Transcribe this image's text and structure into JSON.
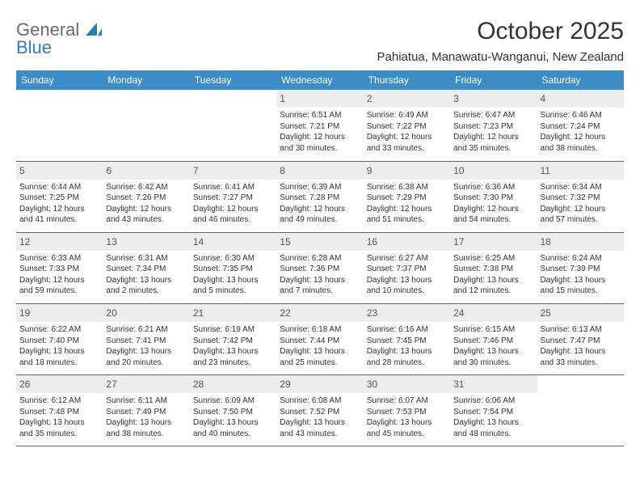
{
  "brand": {
    "word1": "General",
    "word2": "Blue"
  },
  "title": "October 2025",
  "location": "Pahiatua, Manawatu-Wanganui, New Zealand",
  "colors": {
    "header_bg": "#3c8dc5",
    "header_fg": "#ffffff",
    "daynum_bg": "#eceded",
    "rule": "#2a6fa8",
    "text": "#333333",
    "logo_gray": "#6b6b6b",
    "logo_blue": "#2a7fba"
  },
  "weekdays": [
    "Sunday",
    "Monday",
    "Tuesday",
    "Wednesday",
    "Thursday",
    "Friday",
    "Saturday"
  ],
  "weeks": [
    [
      {
        "n": "",
        "sr": "",
        "ss": "",
        "dl": ""
      },
      {
        "n": "",
        "sr": "",
        "ss": "",
        "dl": ""
      },
      {
        "n": "",
        "sr": "",
        "ss": "",
        "dl": ""
      },
      {
        "n": "1",
        "sr": "Sunrise: 6:51 AM",
        "ss": "Sunset: 7:21 PM",
        "dl": "Daylight: 12 hours and 30 minutes."
      },
      {
        "n": "2",
        "sr": "Sunrise: 6:49 AM",
        "ss": "Sunset: 7:22 PM",
        "dl": "Daylight: 12 hours and 33 minutes."
      },
      {
        "n": "3",
        "sr": "Sunrise: 6:47 AM",
        "ss": "Sunset: 7:23 PM",
        "dl": "Daylight: 12 hours and 35 minutes."
      },
      {
        "n": "4",
        "sr": "Sunrise: 6:46 AM",
        "ss": "Sunset: 7:24 PM",
        "dl": "Daylight: 12 hours and 38 minutes."
      }
    ],
    [
      {
        "n": "5",
        "sr": "Sunrise: 6:44 AM",
        "ss": "Sunset: 7:25 PM",
        "dl": "Daylight: 12 hours and 41 minutes."
      },
      {
        "n": "6",
        "sr": "Sunrise: 6:42 AM",
        "ss": "Sunset: 7:26 PM",
        "dl": "Daylight: 12 hours and 43 minutes."
      },
      {
        "n": "7",
        "sr": "Sunrise: 6:41 AM",
        "ss": "Sunset: 7:27 PM",
        "dl": "Daylight: 12 hours and 46 minutes."
      },
      {
        "n": "8",
        "sr": "Sunrise: 6:39 AM",
        "ss": "Sunset: 7:28 PM",
        "dl": "Daylight: 12 hours and 49 minutes."
      },
      {
        "n": "9",
        "sr": "Sunrise: 6:38 AM",
        "ss": "Sunset: 7:29 PM",
        "dl": "Daylight: 12 hours and 51 minutes."
      },
      {
        "n": "10",
        "sr": "Sunrise: 6:36 AM",
        "ss": "Sunset: 7:30 PM",
        "dl": "Daylight: 12 hours and 54 minutes."
      },
      {
        "n": "11",
        "sr": "Sunrise: 6:34 AM",
        "ss": "Sunset: 7:32 PM",
        "dl": "Daylight: 12 hours and 57 minutes."
      }
    ],
    [
      {
        "n": "12",
        "sr": "Sunrise: 6:33 AM",
        "ss": "Sunset: 7:33 PM",
        "dl": "Daylight: 12 hours and 59 minutes."
      },
      {
        "n": "13",
        "sr": "Sunrise: 6:31 AM",
        "ss": "Sunset: 7:34 PM",
        "dl": "Daylight: 13 hours and 2 minutes."
      },
      {
        "n": "14",
        "sr": "Sunrise: 6:30 AM",
        "ss": "Sunset: 7:35 PM",
        "dl": "Daylight: 13 hours and 5 minutes."
      },
      {
        "n": "15",
        "sr": "Sunrise: 6:28 AM",
        "ss": "Sunset: 7:36 PM",
        "dl": "Daylight: 13 hours and 7 minutes."
      },
      {
        "n": "16",
        "sr": "Sunrise: 6:27 AM",
        "ss": "Sunset: 7:37 PM",
        "dl": "Daylight: 13 hours and 10 minutes."
      },
      {
        "n": "17",
        "sr": "Sunrise: 6:25 AM",
        "ss": "Sunset: 7:38 PM",
        "dl": "Daylight: 13 hours and 12 minutes."
      },
      {
        "n": "18",
        "sr": "Sunrise: 6:24 AM",
        "ss": "Sunset: 7:39 PM",
        "dl": "Daylight: 13 hours and 15 minutes."
      }
    ],
    [
      {
        "n": "19",
        "sr": "Sunrise: 6:22 AM",
        "ss": "Sunset: 7:40 PM",
        "dl": "Daylight: 13 hours and 18 minutes."
      },
      {
        "n": "20",
        "sr": "Sunrise: 6:21 AM",
        "ss": "Sunset: 7:41 PM",
        "dl": "Daylight: 13 hours and 20 minutes."
      },
      {
        "n": "21",
        "sr": "Sunrise: 6:19 AM",
        "ss": "Sunset: 7:42 PM",
        "dl": "Daylight: 13 hours and 23 minutes."
      },
      {
        "n": "22",
        "sr": "Sunrise: 6:18 AM",
        "ss": "Sunset: 7:44 PM",
        "dl": "Daylight: 13 hours and 25 minutes."
      },
      {
        "n": "23",
        "sr": "Sunrise: 6:16 AM",
        "ss": "Sunset: 7:45 PM",
        "dl": "Daylight: 13 hours and 28 minutes."
      },
      {
        "n": "24",
        "sr": "Sunrise: 6:15 AM",
        "ss": "Sunset: 7:46 PM",
        "dl": "Daylight: 13 hours and 30 minutes."
      },
      {
        "n": "25",
        "sr": "Sunrise: 6:13 AM",
        "ss": "Sunset: 7:47 PM",
        "dl": "Daylight: 13 hours and 33 minutes."
      }
    ],
    [
      {
        "n": "26",
        "sr": "Sunrise: 6:12 AM",
        "ss": "Sunset: 7:48 PM",
        "dl": "Daylight: 13 hours and 35 minutes."
      },
      {
        "n": "27",
        "sr": "Sunrise: 6:11 AM",
        "ss": "Sunset: 7:49 PM",
        "dl": "Daylight: 13 hours and 38 minutes."
      },
      {
        "n": "28",
        "sr": "Sunrise: 6:09 AM",
        "ss": "Sunset: 7:50 PM",
        "dl": "Daylight: 13 hours and 40 minutes."
      },
      {
        "n": "29",
        "sr": "Sunrise: 6:08 AM",
        "ss": "Sunset: 7:52 PM",
        "dl": "Daylight: 13 hours and 43 minutes."
      },
      {
        "n": "30",
        "sr": "Sunrise: 6:07 AM",
        "ss": "Sunset: 7:53 PM",
        "dl": "Daylight: 13 hours and 45 minutes."
      },
      {
        "n": "31",
        "sr": "Sunrise: 6:06 AM",
        "ss": "Sunset: 7:54 PM",
        "dl": "Daylight: 13 hours and 48 minutes."
      },
      {
        "n": "",
        "sr": "",
        "ss": "",
        "dl": ""
      }
    ]
  ]
}
